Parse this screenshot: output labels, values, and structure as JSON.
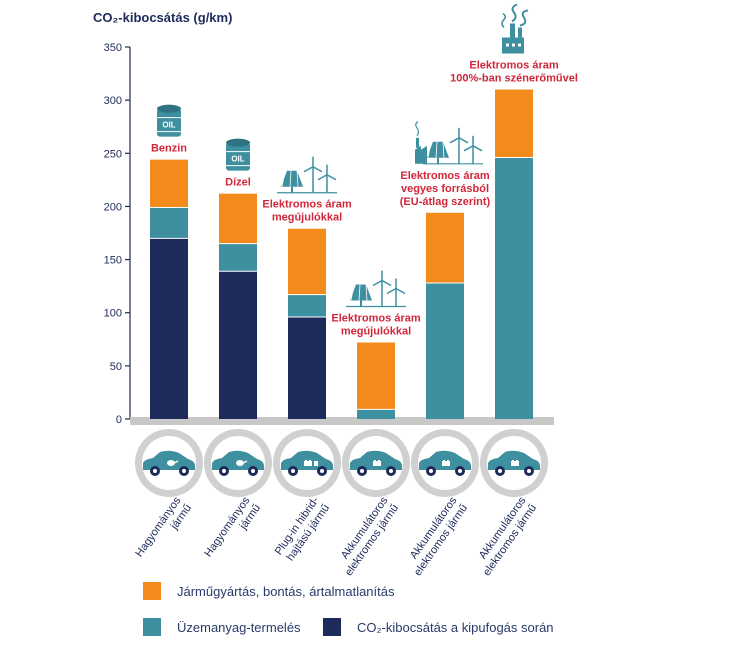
{
  "chart_data": {
    "type": "bar",
    "stacked": true,
    "title": "CO₂-kibocsátás (g/km)",
    "ylim": [
      0,
      350
    ],
    "yticks": [
      0,
      50,
      100,
      150,
      200,
      250,
      300,
      350
    ],
    "categories": [
      {
        "label_lines": [
          "Hagyományos",
          "jármű"
        ],
        "annotation": [
          "Benzin"
        ],
        "icon": "oil-barrel-icon",
        "car_icon": "car-fuel-icon"
      },
      {
        "label_lines": [
          "Hagyományos",
          "jármű"
        ],
        "annotation": [
          "Dízel"
        ],
        "icon": "oil-barrel-icon",
        "car_icon": "car-fuel-icon"
      },
      {
        "label_lines": [
          "Plug-in hibrid-",
          "hajtású jármű"
        ],
        "annotation": [
          "Elektromos áram",
          "megújulókkal"
        ],
        "icon": "solar-wind-icon",
        "car_icon": "car-hybrid-icon"
      },
      {
        "label_lines": [
          "Akkumulátoros",
          "elektromos jármű"
        ],
        "annotation": [
          "Elektromos áram",
          "megújulókkal"
        ],
        "icon": "solar-wind-icon",
        "car_icon": "car-electric-icon"
      },
      {
        "label_lines": [
          "Akkumulátoros",
          "elektromos jármű"
        ],
        "annotation": [
          "Elektromos áram",
          "vegyes forrásból",
          "(EU-átlag szerint)"
        ],
        "icon": "factory-solar-wind-icon",
        "car_icon": "car-electric-icon"
      },
      {
        "label_lines": [
          "Akkumulátoros",
          "elektromos jármű"
        ],
        "annotation": [
          "Elektromos áram",
          "100%-ban szénerőművel"
        ],
        "icon": "coal-factory-icon",
        "car_icon": "car-electric-icon"
      }
    ],
    "series": [
      {
        "name": "CO₂-kibocsátás a kipufogás során",
        "color": "#1e2a5a",
        "values": [
          170,
          139,
          96,
          0,
          0,
          0
        ]
      },
      {
        "name": "Üzemanyag-termelés",
        "color": "#3e8fa0",
        "values": [
          29,
          26,
          21,
          9,
          128,
          246
        ]
      },
      {
        "name": "Járműgyártás, bontás, ártalmatlanítás",
        "color": "#f28a1c",
        "values": [
          45,
          47,
          62,
          63,
          66,
          64
        ]
      }
    ]
  },
  "legend": [
    {
      "label": "Járműgyártás, bontás, ártalmatlanítás",
      "color": "#f28a1c"
    },
    {
      "label": "Üzemanyag-termelés",
      "color": "#3e8fa0"
    },
    {
      "label": "CO₂-kibocsátás a kipufogás során",
      "color": "#1e2a5a"
    }
  ]
}
